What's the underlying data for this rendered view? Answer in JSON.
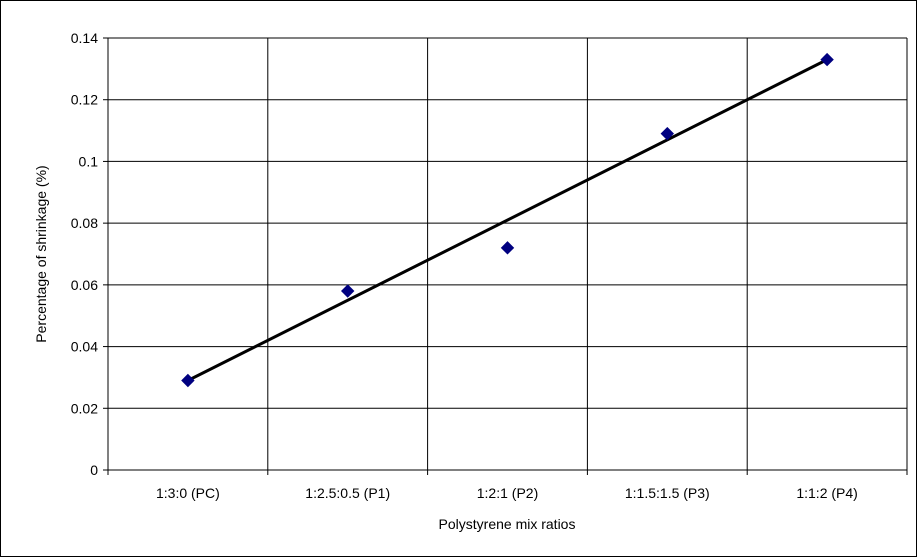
{
  "chart_data": {
    "type": "scatter",
    "title": "",
    "xlabel": "Polystyrene mix ratios",
    "ylabel": "Percentage of shrinkage (%)",
    "categories": [
      "1:3:0 (PC)",
      "1:2.5:0.5 (P1)",
      "1:2:1 (P2)",
      "1:1.5:1.5 (P3)",
      "1:1:2 (P4)"
    ],
    "series": [
      {
        "values": [
          0.029,
          0.058,
          0.072,
          0.109,
          0.133
        ],
        "marker": "diamond",
        "color": "#000080"
      }
    ],
    "trendline": {
      "type": "linear",
      "values": [
        0.029,
        0.055,
        0.081,
        0.107,
        0.133
      ],
      "color": "#000000"
    },
    "ylim": [
      0,
      0.14
    ],
    "yticks": [
      "0",
      "0.02",
      "0.04",
      "0.06",
      "0.08",
      "0.1",
      "0.12",
      "0.14"
    ],
    "grid": true,
    "legend": "none"
  }
}
